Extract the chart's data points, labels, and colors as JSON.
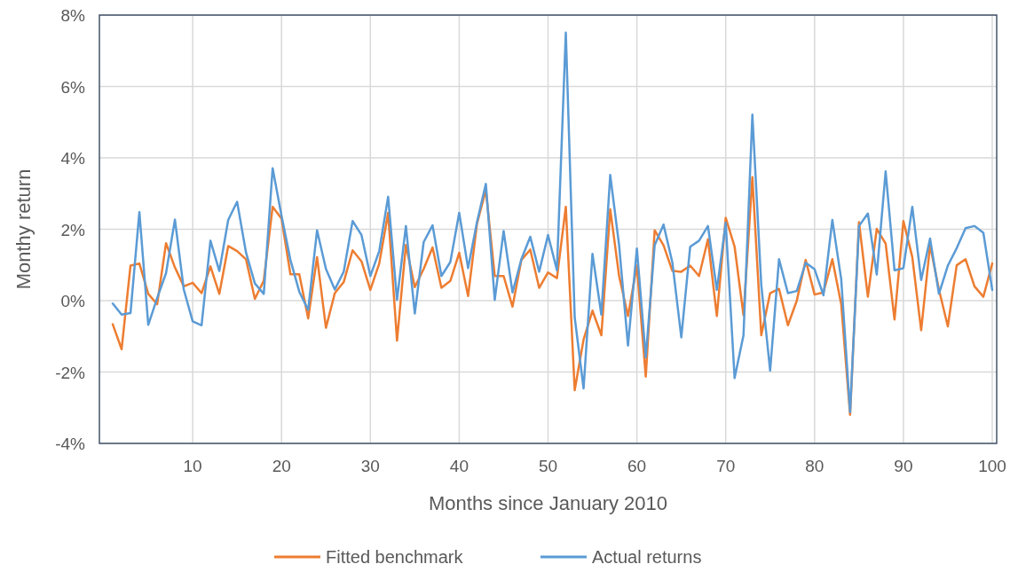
{
  "chart_data": {
    "type": "line",
    "xlabel": "Months since January 2010",
    "ylabel": "Monthy return",
    "x": [
      1,
      2,
      3,
      4,
      5,
      6,
      7,
      8,
      9,
      10,
      11,
      12,
      13,
      14,
      15,
      16,
      17,
      18,
      19,
      20,
      21,
      22,
      23,
      24,
      25,
      26,
      27,
      28,
      29,
      30,
      31,
      32,
      33,
      34,
      35,
      36,
      37,
      38,
      39,
      40,
      41,
      42,
      43,
      44,
      45,
      46,
      47,
      48,
      49,
      50,
      51,
      52,
      53,
      54,
      55,
      56,
      57,
      58,
      59,
      60,
      61,
      62,
      63,
      64,
      65,
      66,
      67,
      68,
      69,
      70,
      71,
      72,
      73,
      74,
      75,
      76,
      77,
      78,
      79,
      80,
      81,
      82,
      83,
      84,
      85,
      86,
      87,
      88,
      89,
      90,
      91,
      92,
      93,
      94,
      95,
      96,
      97,
      98,
      99,
      100
    ],
    "series": [
      {
        "name": "Fitted benchmark",
        "color": "#ed7d31",
        "values": [
          -0.66,
          -1.36,
          0.98,
          1.04,
          0.19,
          -0.1,
          1.61,
          0.93,
          0.4,
          0.5,
          0.21,
          0.96,
          0.19,
          1.53,
          1.39,
          1.16,
          0.05,
          0.56,
          2.63,
          2.3,
          0.74,
          0.74,
          -0.5,
          1.22,
          -0.76,
          0.21,
          0.52,
          1.41,
          1.1,
          0.3,
          1.04,
          2.46,
          -1.12,
          1.56,
          0.38,
          0.89,
          1.49,
          0.36,
          0.55,
          1.34,
          0.13,
          2.15,
          3.1,
          0.69,
          0.69,
          -0.17,
          1.14,
          1.43,
          0.36,
          0.79,
          0.63,
          2.63,
          -2.51,
          -1.09,
          -0.28,
          -0.97,
          2.56,
          0.69,
          -0.43,
          0.98,
          -2.13,
          1.97,
          1.55,
          0.83,
          0.81,
          0.98,
          0.69,
          1.72,
          -0.43,
          2.32,
          1.51,
          -0.41,
          3.46,
          -0.97,
          0.21,
          0.33,
          -0.69,
          0.0,
          1.14,
          0.17,
          0.23,
          1.16,
          -0.1,
          -3.2,
          2.2,
          0.11,
          2.01,
          1.6,
          -0.53,
          2.23,
          1.22,
          -0.83,
          1.55,
          0.31,
          -0.72,
          0.99,
          1.16,
          0.4,
          0.11,
          1.04
        ]
      },
      {
        "name": "Actual returns",
        "color": "#5b9bd5",
        "values": [
          -0.08,
          -0.39,
          -0.35,
          2.48,
          -0.68,
          0.07,
          0.77,
          2.27,
          0.31,
          -0.58,
          -0.69,
          1.68,
          0.83,
          2.26,
          2.77,
          1.35,
          0.48,
          0.19,
          3.71,
          2.38,
          1.14,
          0.25,
          -0.26,
          1.97,
          0.89,
          0.31,
          0.81,
          2.23,
          1.84,
          0.69,
          1.39,
          2.91,
          0.02,
          2.09,
          -0.36,
          1.64,
          2.11,
          0.69,
          1.08,
          2.46,
          0.91,
          2.2,
          3.27,
          0.02,
          1.95,
          0.23,
          1.16,
          1.79,
          0.81,
          1.84,
          0.85,
          7.51,
          -0.47,
          -2.46,
          1.31,
          -0.39,
          3.52,
          1.55,
          -1.26,
          1.46,
          -1.59,
          1.55,
          2.13,
          1.06,
          -1.03,
          1.51,
          1.68,
          2.09,
          0.3,
          2.18,
          -2.17,
          -0.97,
          5.21,
          0.44,
          -1.96,
          1.16,
          0.21,
          0.27,
          1.06,
          0.88,
          0.15,
          2.26,
          0.6,
          -3.12,
          2.09,
          2.44,
          0.73,
          3.62,
          0.85,
          0.91,
          2.63,
          0.58,
          1.74,
          0.19,
          0.98,
          1.47,
          2.03,
          2.09,
          1.9,
          0.3
        ]
      }
    ],
    "xlim": [
      -0.5,
      100.5
    ],
    "xticks": [
      10,
      20,
      30,
      40,
      50,
      60,
      70,
      80,
      90,
      100
    ],
    "ylim": [
      -4,
      8
    ],
    "yticks": [
      {
        "value": -4,
        "label": "-4%"
      },
      {
        "value": -2,
        "label": "-2%"
      },
      {
        "value": 0,
        "label": "0%"
      },
      {
        "value": 2,
        "label": "2%"
      },
      {
        "value": 4,
        "label": "4%"
      },
      {
        "value": 6,
        "label": "6%"
      },
      {
        "value": 8,
        "label": "8%"
      }
    ],
    "grid": true,
    "legend": "bottom",
    "marker": "none",
    "line_style": "solid"
  }
}
